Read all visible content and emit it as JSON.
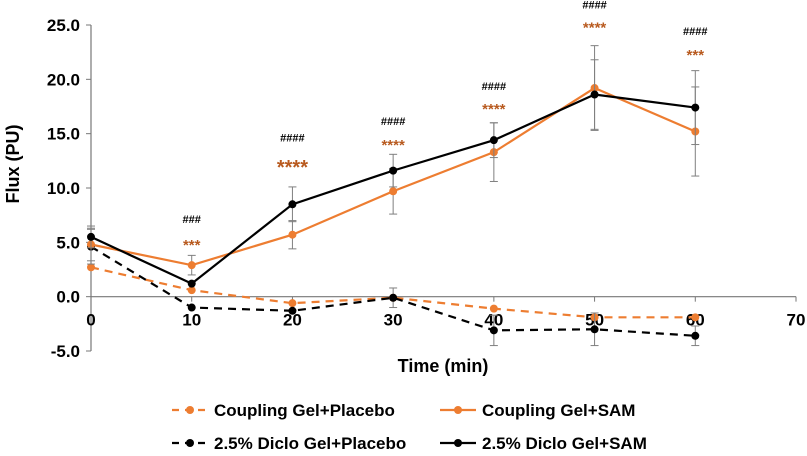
{
  "chart_data": {
    "type": "line",
    "title": "",
    "xlabel": "Time (min)",
    "ylabel": "Flux (PU)",
    "xlim": [
      0,
      70
    ],
    "ylim": [
      -5,
      25
    ],
    "x_ticks": [
      0,
      10,
      20,
      30,
      40,
      50,
      60,
      70
    ],
    "y_ticks": [
      -5,
      0,
      5,
      10,
      15,
      20,
      25
    ],
    "x_tick_labels": [
      "0",
      "10",
      "20",
      "30",
      "40",
      "50",
      "60",
      "70"
    ],
    "y_tick_labels": [
      "-5.0",
      "0.0",
      "5.0",
      "10.0",
      "15.0",
      "20.0",
      "25.0"
    ],
    "x": [
      0,
      10,
      20,
      30,
      40,
      50,
      60
    ],
    "series": [
      {
        "name": "Coupling Gel+Placebo",
        "color": "#ED7D31",
        "dash": "dashed",
        "values": [
          2.7,
          0.6,
          -0.6,
          -0.1,
          -1.1,
          -1.9,
          -1.9
        ],
        "errors": [
          0,
          0,
          0,
          0,
          0,
          0,
          0
        ]
      },
      {
        "name": "Coupling Gel+SAM",
        "color": "#ED7D31",
        "dash": "solid",
        "values": [
          4.8,
          2.9,
          5.7,
          9.7,
          13.3,
          19.2,
          15.2
        ],
        "errors": [
          1.5,
          0.9,
          1.3,
          2.1,
          2.7,
          3.9,
          4.1
        ]
      },
      {
        "name": "2.5% Diclo Gel+Placebo",
        "color": "#000000",
        "dash": "dashed",
        "values": [
          4.6,
          -1.0,
          -1.3,
          -0.1,
          -3.1,
          -3.0,
          -3.6
        ],
        "errors": [
          1.6,
          0,
          0,
          0.9,
          1.4,
          1.5,
          0.9
        ]
      },
      {
        "name": "2.5% Diclo Gel+SAM",
        "color": "#000000",
        "dash": "solid",
        "values": [
          5.5,
          1.2,
          8.5,
          11.6,
          14.4,
          18.6,
          17.4
        ],
        "errors": [
          1.0,
          0,
          1.6,
          1.5,
          1.6,
          3.2,
          3.4
        ]
      }
    ],
    "annotations": [
      {
        "x": 10,
        "y": 6.8,
        "text": "###",
        "color": "#000000",
        "size": 11
      },
      {
        "x": 10,
        "y": 4.3,
        "text": "***",
        "color": "#B85A1F",
        "size": 15
      },
      {
        "x": 20,
        "y": 14.3,
        "text": "####",
        "color": "#000000",
        "size": 11
      },
      {
        "x": 20,
        "y": 11.3,
        "text": "****",
        "color": "#B85A1F",
        "size": 20
      },
      {
        "x": 30,
        "y": 15.8,
        "text": "####",
        "color": "#000000",
        "size": 11
      },
      {
        "x": 30,
        "y": 13.5,
        "text": "****",
        "color": "#B85A1F",
        "size": 15
      },
      {
        "x": 40,
        "y": 19.0,
        "text": "####",
        "color": "#000000",
        "size": 11
      },
      {
        "x": 40,
        "y": 16.8,
        "text": "****",
        "color": "#B85A1F",
        "size": 15
      },
      {
        "x": 50,
        "y": 26.5,
        "text": "####",
        "color": "#000000",
        "size": 11
      },
      {
        "x": 50,
        "y": 24.3,
        "text": "****",
        "color": "#B85A1F",
        "size": 15
      },
      {
        "x": 60,
        "y": 24.1,
        "text": "####",
        "color": "#000000",
        "size": 11
      },
      {
        "x": 60,
        "y": 21.8,
        "text": "***",
        "color": "#B85A1F",
        "size": 15
      }
    ],
    "grid": false,
    "legend_position": "bottom"
  }
}
